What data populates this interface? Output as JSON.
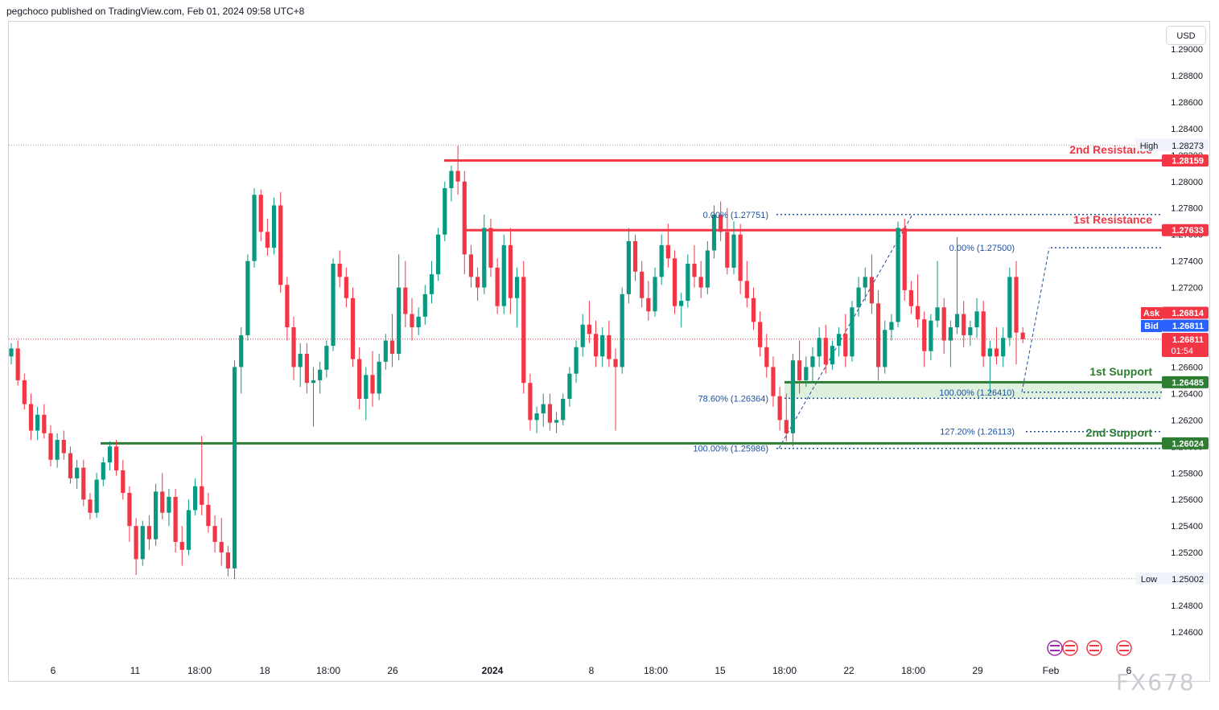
{
  "header": {
    "published": "pegchoco published on TradingView.com, Feb 01, 2024 09:58 UTC+8"
  },
  "currency_button": "USD",
  "watermark": "FX678",
  "colors": {
    "up": "#089981",
    "down": "#f23645",
    "support": "#2e7d32",
    "resistance": "#f23645",
    "fib": "#1e4f9c",
    "ask": "#f23645",
    "bid": "#2962ff",
    "zone": "#d7ecd6"
  },
  "chart_data": {
    "type": "candlestick",
    "yaxis": {
      "min": 1.2448,
      "max": 1.2908,
      "ticks": [
        "1.29000",
        "1.28800",
        "1.28600",
        "1.28400",
        "1.28200",
        "1.28000",
        "1.27800",
        "1.27600",
        "1.27400",
        "1.27200",
        "1.27000",
        "1.26800",
        "1.26600",
        "1.26400",
        "1.26200",
        "1.26000",
        "1.25800",
        "1.25600",
        "1.25400",
        "1.25200",
        "1.25000",
        "1.24800",
        "1.24600"
      ]
    },
    "xaxis": {
      "labels": [
        "6",
        "11",
        "18:00",
        "18",
        "18:00",
        "26",
        "2024",
        "8",
        "18:00",
        "15",
        "18:00",
        "22",
        "18:00",
        "29",
        "Feb",
        "6"
      ]
    },
    "candle_count": 160,
    "ohlc": [
      [
        1.2668,
        1.2678,
        1.2662,
        1.2674
      ],
      [
        1.2674,
        1.268,
        1.2646,
        1.265
      ],
      [
        1.265,
        1.2655,
        1.2628,
        1.2632
      ],
      [
        1.2632,
        1.264,
        1.2605,
        1.2612
      ],
      [
        1.2612,
        1.263,
        1.2605,
        1.2624
      ],
      [
        1.2624,
        1.2632,
        1.2606,
        1.261
      ],
      [
        1.261,
        1.2616,
        1.2585,
        1.259
      ],
      [
        1.259,
        1.261,
        1.2584,
        1.2605
      ],
      [
        1.2605,
        1.2612,
        1.259,
        1.2595
      ],
      [
        1.2595,
        1.26,
        1.2572,
        1.2576
      ],
      [
        1.2576,
        1.259,
        1.2568,
        1.2584
      ],
      [
        1.2584,
        1.259,
        1.2555,
        1.256
      ],
      [
        1.256,
        1.2565,
        1.2545,
        1.255
      ],
      [
        1.255,
        1.258,
        1.2546,
        1.2575
      ],
      [
        1.2575,
        1.2592,
        1.257,
        1.2588
      ],
      [
        1.2588,
        1.2604,
        1.2582,
        1.26
      ],
      [
        1.26,
        1.2605,
        1.2578,
        1.2582
      ],
      [
        1.2582,
        1.259,
        1.256,
        1.2565
      ],
      [
        1.2565,
        1.257,
        1.2528,
        1.254
      ],
      [
        1.254,
        1.2546,
        1.2503,
        1.2515
      ],
      [
        1.2515,
        1.2544,
        1.251,
        1.254
      ],
      [
        1.254,
        1.2548,
        1.2522,
        1.253
      ],
      [
        1.253,
        1.2572,
        1.2525,
        1.2566
      ],
      [
        1.2566,
        1.258,
        1.2545,
        1.255
      ],
      [
        1.255,
        1.2568,
        1.254,
        1.2562
      ],
      [
        1.2562,
        1.2568,
        1.252,
        1.2528
      ],
      [
        1.2528,
        1.254,
        1.251,
        1.2522
      ],
      [
        1.2522,
        1.256,
        1.2518,
        1.2552
      ],
      [
        1.2552,
        1.2576,
        1.2548,
        1.257
      ],
      [
        1.257,
        1.2608,
        1.2548,
        1.2556
      ],
      [
        1.2556,
        1.2565,
        1.2535,
        1.254
      ],
      [
        1.254,
        1.2548,
        1.252,
        1.2528
      ],
      [
        1.2528,
        1.2546,
        1.251,
        1.252
      ],
      [
        1.252,
        1.2525,
        1.2502,
        1.2508
      ],
      [
        1.2508,
        1.2665,
        1.25,
        1.266
      ],
      [
        1.266,
        1.269,
        1.264,
        1.2684
      ],
      [
        1.2684,
        1.2745,
        1.268,
        1.274
      ],
      [
        1.274,
        1.2795,
        1.2735,
        1.279
      ],
      [
        1.279,
        1.2794,
        1.2755,
        1.2762
      ],
      [
        1.2762,
        1.2772,
        1.2744,
        1.275
      ],
      [
        1.275,
        1.2788,
        1.2745,
        1.2782
      ],
      [
        1.2782,
        1.2792,
        1.2716,
        1.2722
      ],
      [
        1.2722,
        1.2728,
        1.268,
        1.269
      ],
      [
        1.269,
        1.2698,
        1.265,
        1.266
      ],
      [
        1.266,
        1.2678,
        1.2645,
        1.267
      ],
      [
        1.267,
        1.2678,
        1.264,
        1.2648
      ],
      [
        1.2648,
        1.266,
        1.2615,
        1.265
      ],
      [
        1.265,
        1.2664,
        1.264,
        1.2658
      ],
      [
        1.2658,
        1.268,
        1.2652,
        1.2676
      ],
      [
        1.2676,
        1.2742,
        1.2672,
        1.2738
      ],
      [
        1.2738,
        1.2748,
        1.272,
        1.2728
      ],
      [
        1.2728,
        1.2735,
        1.2705,
        1.2712
      ],
      [
        1.2712,
        1.272,
        1.266,
        1.2666
      ],
      [
        1.2666,
        1.2675,
        1.2628,
        1.2636
      ],
      [
        1.2636,
        1.266,
        1.262,
        1.2654
      ],
      [
        1.2654,
        1.2672,
        1.263,
        1.264
      ],
      [
        1.264,
        1.267,
        1.2635,
        1.2664
      ],
      [
        1.2664,
        1.2685,
        1.2658,
        1.268
      ],
      [
        1.268,
        1.27,
        1.266,
        1.267
      ],
      [
        1.267,
        1.2745,
        1.2665,
        1.272
      ],
      [
        1.272,
        1.274,
        1.269,
        1.27
      ],
      [
        1.27,
        1.2712,
        1.268,
        1.269
      ],
      [
        1.269,
        1.2705,
        1.2684,
        1.2698
      ],
      [
        1.2698,
        1.2722,
        1.2692,
        1.2715
      ],
      [
        1.2715,
        1.274,
        1.2708,
        1.273
      ],
      [
        1.273,
        1.2765,
        1.2725,
        1.276
      ],
      [
        1.276,
        1.28,
        1.2755,
        1.2795
      ],
      [
        1.2795,
        1.2812,
        1.2785,
        1.2808
      ],
      [
        1.2808,
        1.2827,
        1.279,
        1.28
      ],
      [
        1.28,
        1.2808,
        1.273,
        1.2745
      ],
      [
        1.2745,
        1.2752,
        1.272,
        1.2728
      ],
      [
        1.2728,
        1.2735,
        1.271,
        1.272
      ],
      [
        1.272,
        1.2775,
        1.2715,
        1.2765
      ],
      [
        1.2765,
        1.2772,
        1.2728,
        1.2735
      ],
      [
        1.2735,
        1.2742,
        1.27,
        1.2706
      ],
      [
        1.2706,
        1.276,
        1.27,
        1.2752
      ],
      [
        1.2752,
        1.2765,
        1.27,
        1.2712
      ],
      [
        1.2712,
        1.2735,
        1.269,
        1.2728
      ],
      [
        1.2728,
        1.274,
        1.264,
        1.2648
      ],
      [
        1.2648,
        1.2655,
        1.2612,
        1.262
      ],
      [
        1.262,
        1.263,
        1.261,
        1.2625
      ],
      [
        1.2625,
        1.264,
        1.2615,
        1.2632
      ],
      [
        1.2632,
        1.264,
        1.2612,
        1.2618
      ],
      [
        1.2618,
        1.2626,
        1.261,
        1.262
      ],
      [
        1.262,
        1.264,
        1.2616,
        1.2636
      ],
      [
        1.2636,
        1.266,
        1.263,
        1.2655
      ],
      [
        1.2655,
        1.268,
        1.2648,
        1.2675
      ],
      [
        1.2675,
        1.27,
        1.2668,
        1.2692
      ],
      [
        1.2692,
        1.271,
        1.2678,
        1.2685
      ],
      [
        1.2685,
        1.2695,
        1.266,
        1.2668
      ],
      [
        1.2668,
        1.269,
        1.266,
        1.2684
      ],
      [
        1.2684,
        1.2695,
        1.266,
        1.2666
      ],
      [
        1.2666,
        1.2674,
        1.2612,
        1.266
      ],
      [
        1.266,
        1.272,
        1.2655,
        1.2715
      ],
      [
        1.2715,
        1.2765,
        1.2708,
        1.2755
      ],
      [
        1.2755,
        1.276,
        1.2725,
        1.2732
      ],
      [
        1.2732,
        1.274,
        1.2705,
        1.2712
      ],
      [
        1.2712,
        1.2725,
        1.2695,
        1.2702
      ],
      [
        1.2702,
        1.2735,
        1.2698,
        1.2728
      ],
      [
        1.2728,
        1.276,
        1.2722,
        1.2752
      ],
      [
        1.2752,
        1.2768,
        1.2735,
        1.2742
      ],
      [
        1.2742,
        1.2748,
        1.27,
        1.2706
      ],
      [
        1.2706,
        1.2716,
        1.269,
        1.271
      ],
      [
        1.271,
        1.2745,
        1.2705,
        1.2738
      ],
      [
        1.2738,
        1.2752,
        1.272,
        1.2728
      ],
      [
        1.2728,
        1.274,
        1.2712,
        1.272
      ],
      [
        1.272,
        1.2755,
        1.2715,
        1.2748
      ],
      [
        1.2748,
        1.2782,
        1.2742,
        1.2775
      ],
      [
        1.2775,
        1.2785,
        1.2755,
        1.2762
      ],
      [
        1.2762,
        1.278,
        1.273,
        1.2735
      ],
      [
        1.2735,
        1.277,
        1.273,
        1.276
      ],
      [
        1.276,
        1.2768,
        1.2715,
        1.2725
      ],
      [
        1.2725,
        1.274,
        1.2705,
        1.2712
      ],
      [
        1.2712,
        1.272,
        1.2688,
        1.2694
      ],
      [
        1.2694,
        1.2702,
        1.2668,
        1.2675
      ],
      [
        1.2675,
        1.2685,
        1.2652,
        1.266
      ],
      [
        1.266,
        1.2668,
        1.263,
        1.2638
      ],
      [
        1.2638,
        1.2645,
        1.2612,
        1.262
      ],
      [
        1.262,
        1.264,
        1.2604,
        1.261
      ],
      [
        1.261,
        1.267,
        1.26,
        1.2665
      ],
      [
        1.2665,
        1.268,
        1.264,
        1.265
      ],
      [
        1.265,
        1.2668,
        1.2645,
        1.266
      ],
      [
        1.266,
        1.2675,
        1.2648,
        1.2668
      ],
      [
        1.2668,
        1.269,
        1.266,
        1.2682
      ],
      [
        1.2682,
        1.2692,
        1.2655,
        1.2662
      ],
      [
        1.2662,
        1.268,
        1.2658,
        1.2676
      ],
      [
        1.2676,
        1.269,
        1.2668,
        1.2685
      ],
      [
        1.2685,
        1.27,
        1.266,
        1.2668
      ],
      [
        1.2668,
        1.271,
        1.2664,
        1.2705
      ],
      [
        1.2705,
        1.2728,
        1.2698,
        1.272
      ],
      [
        1.272,
        1.2735,
        1.271,
        1.2728
      ],
      [
        1.2728,
        1.2745,
        1.27,
        1.2708
      ],
      [
        1.2708,
        1.2718,
        1.265,
        1.266
      ],
      [
        1.266,
        1.2695,
        1.2655,
        1.2688
      ],
      [
        1.2688,
        1.27,
        1.268,
        1.2694
      ],
      [
        1.2694,
        1.277,
        1.269,
        1.2765
      ],
      [
        1.2765,
        1.2772,
        1.271,
        1.2718
      ],
      [
        1.2718,
        1.2725,
        1.27,
        1.2706
      ],
      [
        1.2706,
        1.273,
        1.269,
        1.2696
      ],
      [
        1.2696,
        1.2702,
        1.266,
        1.2672
      ],
      [
        1.2672,
        1.27,
        1.2665,
        1.2695
      ],
      [
        1.2695,
        1.274,
        1.269,
        1.2705
      ],
      [
        1.2705,
        1.2712,
        1.267,
        1.268
      ],
      [
        1.268,
        1.2695,
        1.266,
        1.269
      ],
      [
        1.269,
        1.2758,
        1.2685,
        1.27
      ],
      [
        1.27,
        1.271,
        1.2675,
        1.2684
      ],
      [
        1.2684,
        1.2695,
        1.2676,
        1.269
      ],
      [
        1.269,
        1.2712,
        1.2682,
        1.2702
      ],
      [
        1.2702,
        1.271,
        1.266,
        1.2668
      ],
      [
        1.2668,
        1.268,
        1.264,
        1.2674
      ],
      [
        1.2674,
        1.269,
        1.2662,
        1.2668
      ],
      [
        1.2668,
        1.269,
        1.266,
        1.2682
      ],
      [
        1.2682,
        1.2735,
        1.2676,
        1.2728
      ],
      [
        1.2728,
        1.274,
        1.2662,
        1.2686
      ],
      [
        1.2686,
        1.269,
        1.2678,
        1.2681
      ]
    ],
    "horizontal_levels": [
      {
        "label": "2nd Resistance",
        "price": 1.28159,
        "price_label": "1.28159",
        "kind": "resistance"
      },
      {
        "label": "1st Resistance",
        "price": 1.27633,
        "price_label": "1.27633",
        "kind": "resistance"
      },
      {
        "label": "1st Support",
        "price": 1.26485,
        "price_label": "1.26485",
        "kind": "support"
      },
      {
        "label": "2nd Support",
        "price": 1.26024,
        "price_label": "1.26024",
        "kind": "support"
      }
    ],
    "fib_levels": [
      {
        "label": "0.00% (1.27751)",
        "price": 1.27751
      },
      {
        "label": "0.00% (1.27500)",
        "price": 1.275
      },
      {
        "label": "100.00% (1.26410)",
        "price": 1.2641
      },
      {
        "label": "78.60% (1.26364)",
        "price": 1.26364
      },
      {
        "label": "127.20% (1.26113)",
        "price": 1.26113
      },
      {
        "label": "100.00% (1.25986)",
        "price": 1.25986
      }
    ],
    "high": {
      "label": "High",
      "price": 1.28273,
      "price_label": "1.28273"
    },
    "low": {
      "label": "Low",
      "price": 1.25002,
      "price_label": "1.25002"
    },
    "ask": {
      "label": "Ask",
      "price_label": "1.26814"
    },
    "bid": {
      "label": "Bid",
      "price_label": "1.26811"
    },
    "last": {
      "price": 1.26811,
      "price_label": "1.26811",
      "countdown": "01:54"
    }
  }
}
